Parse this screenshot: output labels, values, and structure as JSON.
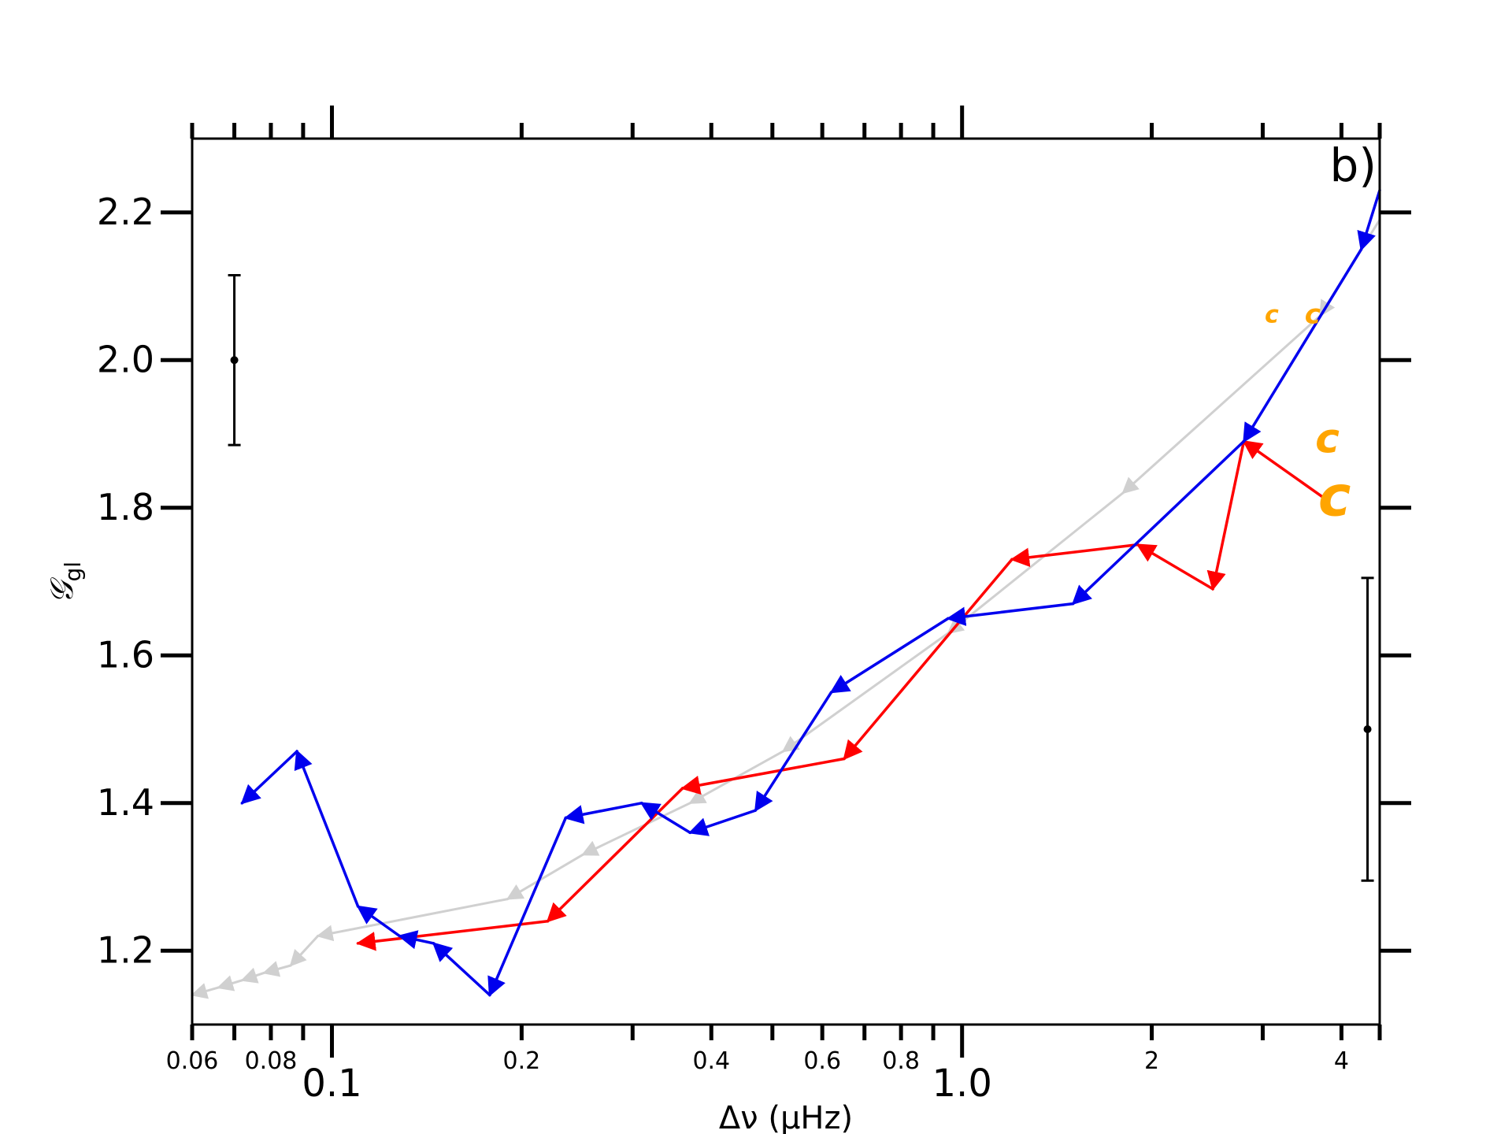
{
  "chart_data": {
    "type": "line",
    "panel_label": "b)",
    "xlabel": "Δν (μHz)",
    "ylabel_main": "𝒢",
    "ylabel_sub": "gl",
    "x_scale": "log",
    "xlim": [
      0.06,
      4.6
    ],
    "ylim": [
      1.1,
      2.3
    ],
    "y_ticks": [
      "1.2",
      "1.4",
      "1.6",
      "1.8",
      "2.0",
      "2.2"
    ],
    "x_major_ticks": [
      "0.1",
      "1.0"
    ],
    "x_minor_ticks": [
      "0.06",
      "0.08",
      "0.2",
      "0.4",
      "0.6",
      "0.8",
      "2",
      "4"
    ],
    "colors": {
      "blue": "#0000ee",
      "red": "#ff0000",
      "gray": "#d0d0d0",
      "orange": "#ffa500"
    },
    "series": [
      {
        "color": "gray",
        "x": [
          4.6,
          3.7,
          1.8,
          0.95,
          0.52,
          0.37,
          0.25,
          0.19,
          0.095,
          0.086,
          0.078,
          0.072,
          0.066,
          0.06
        ],
        "y": [
          2.19,
          2.06,
          1.82,
          1.63,
          1.47,
          1.4,
          1.33,
          1.27,
          1.22,
          1.18,
          1.17,
          1.16,
          1.15,
          1.14
        ]
      },
      {
        "color": "blue",
        "x": [
          4.6,
          4.3,
          2.8,
          1.5,
          0.95,
          0.62,
          0.47,
          0.37,
          0.31,
          0.235,
          0.178,
          0.145,
          0.128,
          0.11,
          0.088,
          0.072
        ],
        "y": [
          2.23,
          2.15,
          1.89,
          1.67,
          1.65,
          1.55,
          1.39,
          1.36,
          1.4,
          1.38,
          1.14,
          1.21,
          1.22,
          1.26,
          1.47,
          1.4
        ]
      },
      {
        "color": "red",
        "x": [
          3.8,
          2.8,
          2.5,
          1.9,
          1.2,
          0.65,
          0.36,
          0.22,
          0.11
        ],
        "y": [
          1.81,
          1.89,
          1.69,
          1.75,
          1.73,
          1.46,
          1.42,
          1.24,
          1.21
        ]
      }
    ],
    "error_bars": [
      {
        "x": 0.07,
        "y": 2.0,
        "err": 0.115
      },
      {
        "x": 4.4,
        "y": 1.5,
        "err": 0.205
      }
    ],
    "markers": [
      {
        "text": "c",
        "x": 3.1,
        "y": 2.06,
        "size": 30
      },
      {
        "text": "c",
        "x": 3.6,
        "y": 2.06,
        "size": 34
      },
      {
        "text": "c",
        "x": 3.8,
        "y": 1.89,
        "size": 52
      },
      {
        "text": "c",
        "x": 3.9,
        "y": 1.81,
        "size": 70
      }
    ]
  }
}
